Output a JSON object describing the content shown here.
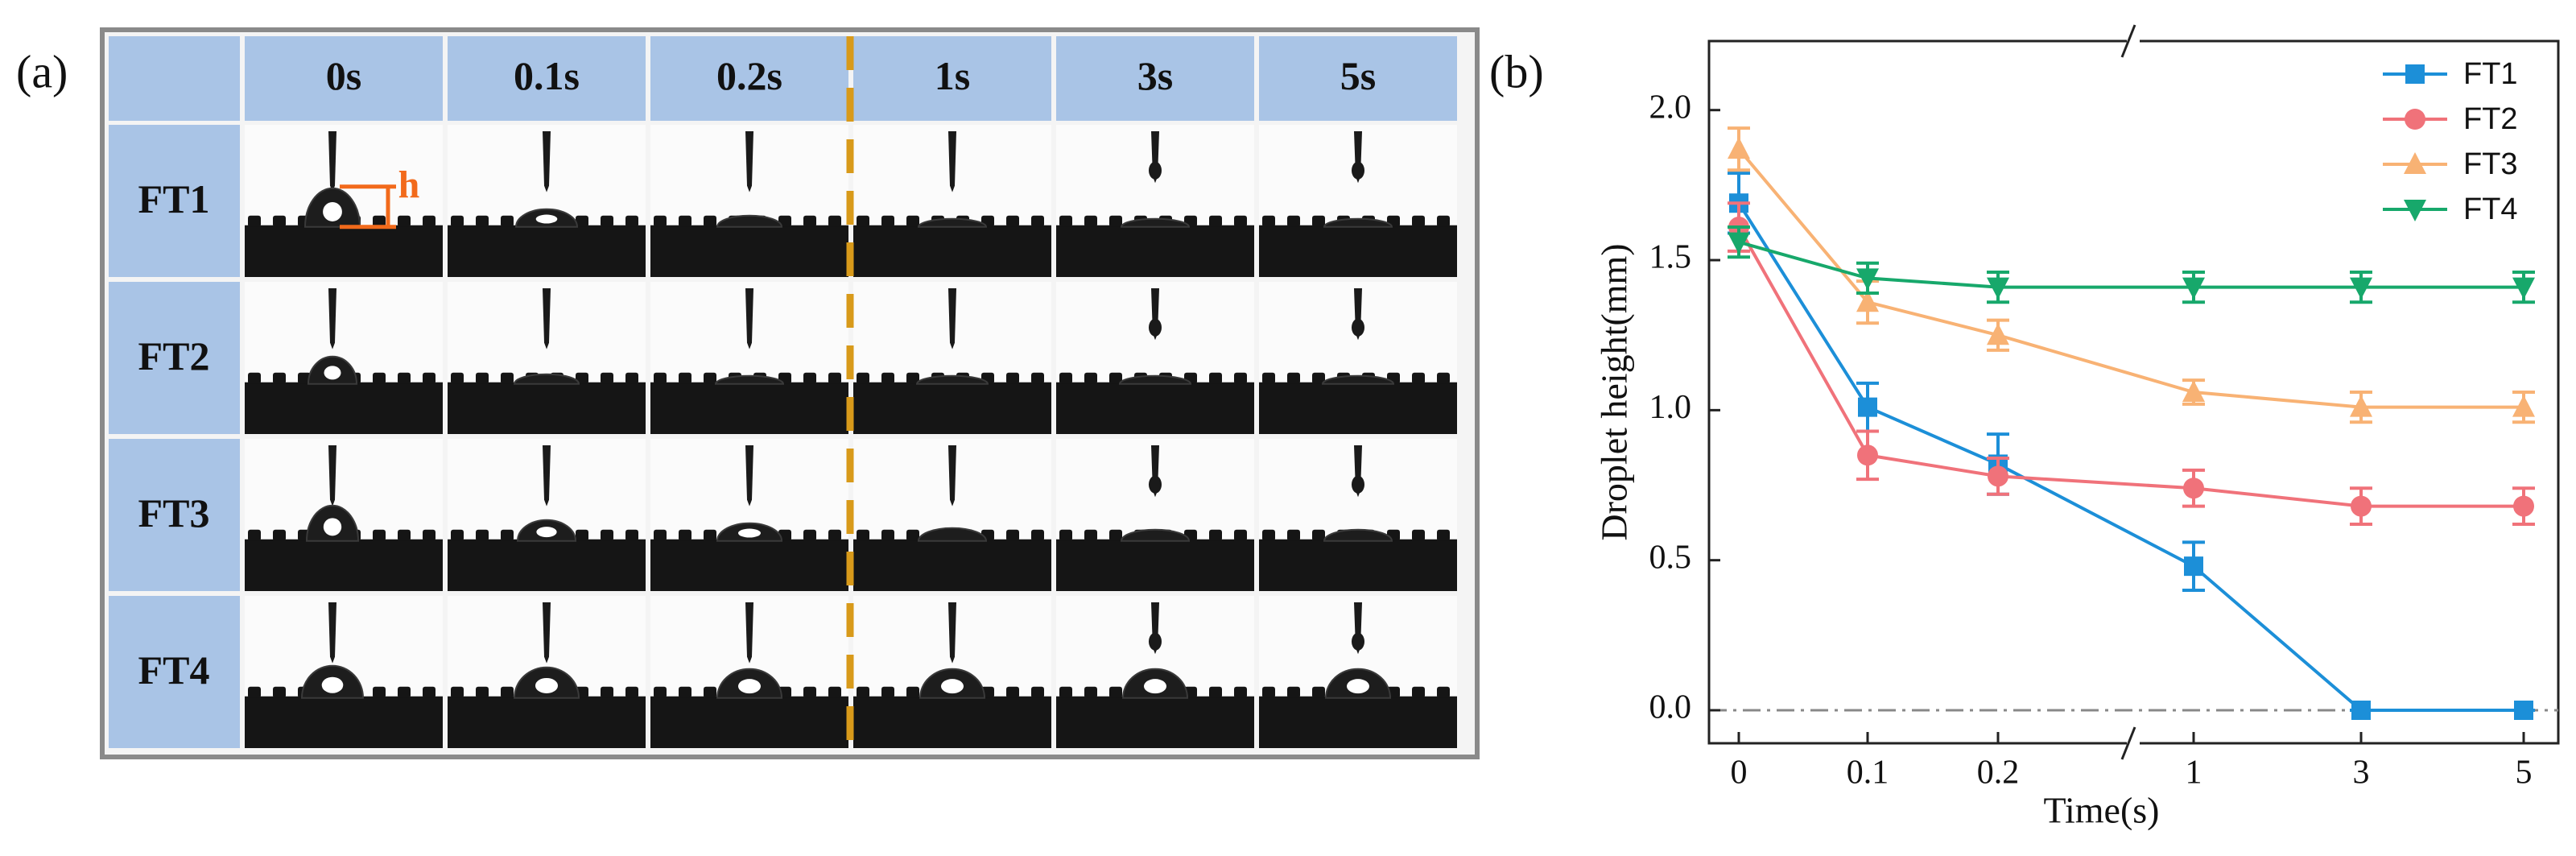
{
  "panel_a": {
    "label": "(a)",
    "columns": [
      "0s",
      "0.1s",
      "0.2s",
      "1s",
      "3s",
      "5s"
    ],
    "rows": [
      "FT1",
      "FT2",
      "FT3",
      "FT4"
    ],
    "annotation": "h"
  },
  "chart_data": {
    "type": "line",
    "panel_label": "(b)",
    "x_label": "Time(s)",
    "y_label": "Droplet height(mm)",
    "categories": [
      "0",
      "0.1",
      "0.2",
      "1",
      "3",
      "5"
    ],
    "ylim": [
      -0.11,
      2.23
    ],
    "yticks": [
      {
        "value": 0,
        "label": "0.0"
      },
      {
        "value": 0.5,
        "label": "0.5"
      },
      {
        "value": 1,
        "label": "1.0"
      },
      {
        "value": 1.5,
        "label": "1.5"
      },
      {
        "value": 2,
        "label": "2.0"
      }
    ],
    "legend": "top-right",
    "series": [
      {
        "name": "FT1",
        "color": "#1c8fd8",
        "marker": "square",
        "values": [
          1.69,
          1.01,
          0.82,
          0.48,
          0,
          0
        ],
        "errors": [
          0.1,
          0.08,
          0.1,
          0.08,
          0,
          0
        ]
      },
      {
        "name": "FT2",
        "color": "#f0727a",
        "marker": "circle",
        "values": [
          1.61,
          0.85,
          0.78,
          0.74,
          0.68,
          0.68
        ],
        "errors": [
          0.08,
          0.08,
          0.06,
          0.06,
          0.06,
          0.06
        ]
      },
      {
        "name": "FT3",
        "color": "#f8b274",
        "marker": "triangle-up",
        "values": [
          1.87,
          1.36,
          1.25,
          1.06,
          1.01,
          1.01
        ],
        "errors": [
          0.07,
          0.07,
          0.05,
          0.04,
          0.05,
          0.05
        ]
      },
      {
        "name": "FT4",
        "color": "#17a86b",
        "marker": "triangle-down",
        "values": [
          1.56,
          1.44,
          1.41,
          1.41,
          1.41,
          1.41
        ],
        "errors": [
          0.05,
          0.05,
          0.05,
          0.05,
          0.05,
          0.05
        ]
      }
    ]
  }
}
